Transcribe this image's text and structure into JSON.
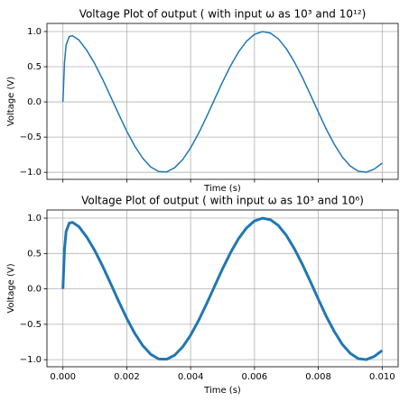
{
  "chart_data": [
    {
      "type": "line",
      "title": "Voltage Plot of output ( with input ω as 10³ and 10¹²)",
      "xlabel": "Time (s)",
      "ylabel": "Voltage (V)",
      "color": "#1f77b4",
      "linewidth": 1.5,
      "grid": true,
      "x": [
        0,
        5e-05,
        0.0001,
        0.0002,
        0.0003,
        0.0005,
        0.00075,
        0.001,
        0.00125,
        0.0015,
        0.00175,
        0.002,
        0.00225,
        0.0025,
        0.00275,
        0.003,
        0.00325,
        0.0035,
        0.00375,
        0.004,
        0.00425,
        0.0045,
        0.00475,
        0.005,
        0.00525,
        0.0055,
        0.00575,
        0.006,
        0.00625,
        0.0065,
        0.00675,
        0.007,
        0.00725,
        0.0075,
        0.00775,
        0.008,
        0.00825,
        0.0085,
        0.00875,
        0.009,
        0.00925,
        0.0095,
        0.00975,
        0.01
      ],
      "values": [
        0,
        0.56,
        0.81,
        0.93,
        0.94,
        0.88,
        0.73,
        0.54,
        0.315,
        0.071,
        -0.178,
        -0.416,
        -0.628,
        -0.801,
        -0.924,
        -0.99,
        -0.994,
        -0.936,
        -0.82,
        -0.654,
        -0.446,
        -0.211,
        0.037,
        0.284,
        0.512,
        0.709,
        0.861,
        0.96,
        0.999,
        0.977,
        0.895,
        0.754,
        0.567,
        0.347,
        0.105,
        -0.146,
        -0.389,
        -0.602,
        -0.783,
        -0.911,
        -0.985,
        -0.999,
        -0.955,
        -0.87
      ],
      "xlim": [
        -0.0005,
        0.0105
      ],
      "ylim": [
        -1.1,
        1.115
      ],
      "xticks": [
        0,
        0.002,
        0.004,
        0.006,
        0.008,
        0.01
      ],
      "yticks": [
        {
          "value": 1,
          "label": "1.0"
        },
        {
          "value": 0.5,
          "label": "0.5"
        },
        {
          "value": 0,
          "label": "0.0"
        },
        {
          "value": -0.5,
          "label": "−0.5"
        },
        {
          "value": -1,
          "label": "−1.0"
        }
      ]
    },
    {
      "type": "line",
      "title": "Voltage Plot of output ( with input ω as 10³ and 10⁶)",
      "xlabel": "Time (s)",
      "ylabel": "Voltage (V)",
      "color": "#1f77b4",
      "linewidth": 3,
      "grid": true,
      "x": [
        0,
        5e-05,
        0.0001,
        0.0002,
        0.0003,
        0.0005,
        0.00075,
        0.001,
        0.00125,
        0.0015,
        0.00175,
        0.002,
        0.00225,
        0.0025,
        0.00275,
        0.003,
        0.00325,
        0.0035,
        0.00375,
        0.004,
        0.00425,
        0.0045,
        0.00475,
        0.005,
        0.00525,
        0.0055,
        0.00575,
        0.006,
        0.00625,
        0.0065,
        0.00675,
        0.007,
        0.00725,
        0.0075,
        0.00775,
        0.008,
        0.00825,
        0.0085,
        0.00875,
        0.009,
        0.00925,
        0.0095,
        0.00975,
        0.01
      ],
      "values": [
        0,
        0.56,
        0.81,
        0.93,
        0.94,
        0.88,
        0.73,
        0.54,
        0.315,
        0.071,
        -0.178,
        -0.416,
        -0.628,
        -0.801,
        -0.924,
        -0.99,
        -0.994,
        -0.936,
        -0.82,
        -0.654,
        -0.446,
        -0.211,
        0.037,
        0.284,
        0.512,
        0.709,
        0.861,
        0.96,
        0.999,
        0.977,
        0.895,
        0.754,
        0.567,
        0.347,
        0.105,
        -0.146,
        -0.389,
        -0.602,
        -0.783,
        -0.911,
        -0.985,
        -0.999,
        -0.955,
        -0.87
      ],
      "xlim": [
        -0.0005,
        0.0105
      ],
      "ylim": [
        -1.1,
        1.115
      ],
      "xticks": [
        {
          "value": 0,
          "label": "0.000"
        },
        {
          "value": 0.002,
          "label": "0.002"
        },
        {
          "value": 0.004,
          "label": "0.004"
        },
        {
          "value": 0.006,
          "label": "0.006"
        },
        {
          "value": 0.008,
          "label": "0.008"
        },
        {
          "value": 0.01,
          "label": "0.010"
        }
      ],
      "yticks": [
        {
          "value": 1,
          "label": "1.0"
        },
        {
          "value": 0.5,
          "label": "0.5"
        },
        {
          "value": 0,
          "label": "0.0"
        },
        {
          "value": -0.5,
          "label": "−0.5"
        },
        {
          "value": -1,
          "label": "−1.0"
        }
      ]
    }
  ]
}
